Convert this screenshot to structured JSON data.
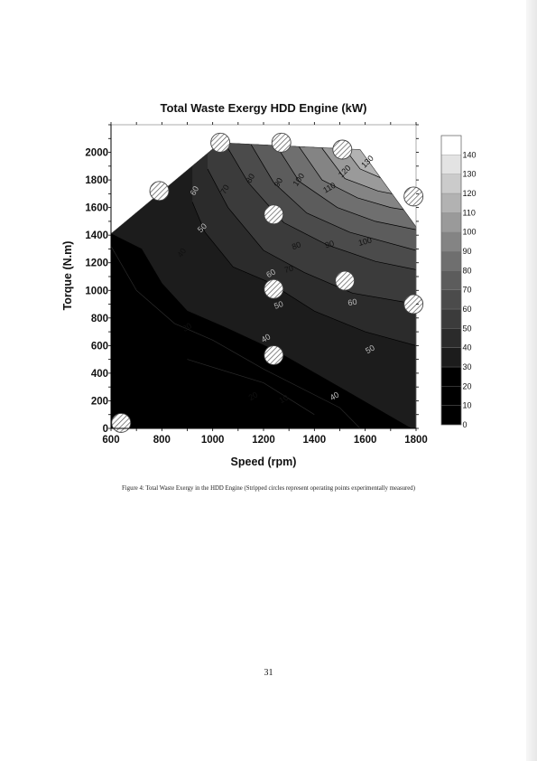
{
  "chart_data": {
    "type": "contour",
    "title": "Total Waste Exergy HDD Engine (kW)",
    "xlabel": "Speed (rpm)",
    "ylabel": "Torque (N.m)",
    "xlim": [
      600,
      1800
    ],
    "ylim": [
      0,
      2200
    ],
    "x_ticks": [
      600,
      800,
      1000,
      1200,
      1400,
      1600,
      1800
    ],
    "y_ticks": [
      0,
      200,
      400,
      600,
      800,
      1000,
      1200,
      1400,
      1600,
      1800,
      2000
    ],
    "colorbar": {
      "ticks": [
        0,
        10,
        20,
        30,
        40,
        50,
        60,
        70,
        80,
        90,
        100,
        110,
        120,
        130,
        140
      ],
      "colors": [
        "#000000",
        "#000000",
        "#000000",
        "#1c1c1c",
        "#2b2b2b",
        "#3b3b3b",
        "#4b4b4b",
        "#5c5c5c",
        "#6f6f6f",
        "#848484",
        "#9a9a9a",
        "#b2b2b2",
        "#cbcbcb",
        "#e3e3e3",
        "#ffffff"
      ]
    },
    "operating_region": [
      [
        600,
        0
      ],
      [
        1800,
        0
      ],
      [
        1800,
        1460
      ],
      [
        1580,
        2020
      ],
      [
        1030,
        2070
      ],
      [
        600,
        1410
      ]
    ],
    "contour_lines": [
      {
        "level": 10,
        "points": [
          [
            900,
            500
          ],
          [
            1200,
            330
          ],
          [
            1400,
            100
          ]
        ],
        "color": "#2a2a2a"
      },
      {
        "level": 20,
        "points": [
          [
            600,
            1320
          ],
          [
            700,
            1000
          ],
          [
            850,
            760
          ],
          [
            1000,
            640
          ],
          [
            1200,
            430
          ],
          [
            1500,
            150
          ],
          [
            1580,
            0
          ]
        ],
        "color": "#2a2a2a"
      },
      {
        "level": 30,
        "points": [
          [
            600,
            1410
          ],
          [
            720,
            1300
          ],
          [
            800,
            1050
          ],
          [
            900,
            850
          ],
          [
            1050,
            730
          ],
          [
            1250,
            560
          ],
          [
            1450,
            350
          ],
          [
            1620,
            170
          ],
          [
            1780,
            0
          ]
        ],
        "color": "#000000"
      },
      {
        "level": 40,
        "points": [
          [
            920,
            1640
          ],
          [
            970,
            1420
          ],
          [
            1080,
            1170
          ],
          [
            1220,
            1060
          ],
          [
            1400,
            850
          ],
          [
            1600,
            700
          ],
          [
            1800,
            600
          ]
        ],
        "color": "#000000"
      },
      {
        "level": 50,
        "points": [
          [
            980,
            1880
          ],
          [
            1060,
            1600
          ],
          [
            1200,
            1290
          ],
          [
            1360,
            1130
          ],
          [
            1550,
            980
          ],
          [
            1800,
            900
          ]
        ],
        "color": "#000000"
      },
      {
        "level": 60,
        "points": [
          [
            1050,
            2060
          ],
          [
            1140,
            1780
          ],
          [
            1280,
            1490
          ],
          [
            1450,
            1330
          ],
          [
            1640,
            1210
          ],
          [
            1800,
            1150
          ]
        ],
        "color": "#000000"
      },
      {
        "level": 70,
        "points": [
          [
            1150,
            2060
          ],
          [
            1240,
            1780
          ],
          [
            1370,
            1560
          ],
          [
            1540,
            1420
          ],
          [
            1800,
            1290
          ]
        ],
        "color": "#000000"
      },
      {
        "level": 80,
        "points": [
          [
            1250,
            2050
          ],
          [
            1340,
            1790
          ],
          [
            1490,
            1600
          ],
          [
            1640,
            1500
          ],
          [
            1800,
            1440
          ]
        ],
        "color": "#000000"
      },
      {
        "level": 90,
        "points": [
          [
            1340,
            2040
          ],
          [
            1430,
            1800
          ],
          [
            1570,
            1670
          ],
          [
            1700,
            1600
          ],
          [
            1800,
            1570
          ]
        ],
        "color": "#000000"
      },
      {
        "level": 100,
        "points": [
          [
            1430,
            2030
          ],
          [
            1520,
            1810
          ],
          [
            1650,
            1720
          ],
          [
            1760,
            1680
          ],
          [
            1800,
            1670
          ]
        ],
        "color": "#000000"
      },
      {
        "level": 110,
        "points": [
          [
            1520,
            2025
          ],
          [
            1580,
            1880
          ],
          [
            1680,
            1800
          ],
          [
            1800,
            1770
          ]
        ],
        "color": "#000000"
      }
    ],
    "contour_labels": [
      {
        "text": "10",
        "x": 1280,
        "y": 210,
        "rot": -30,
        "light": false
      },
      {
        "text": "20",
        "x": 1160,
        "y": 230,
        "rot": -30,
        "light": false
      },
      {
        "text": "30",
        "x": 900,
        "y": 730,
        "rot": -30,
        "light": false
      },
      {
        "text": "40",
        "x": 880,
        "y": 1270,
        "rot": -55,
        "light": false
      },
      {
        "text": "40",
        "x": 1210,
        "y": 650,
        "rot": -30,
        "light": true
      },
      {
        "text": "40",
        "x": 1480,
        "y": 230,
        "rot": -30,
        "light": true
      },
      {
        "text": "50",
        "x": 960,
        "y": 1450,
        "rot": -45,
        "light": true
      },
      {
        "text": "50",
        "x": 1260,
        "y": 890,
        "rot": -20,
        "light": true
      },
      {
        "text": "50",
        "x": 1620,
        "y": 570,
        "rot": -30,
        "light": true
      },
      {
        "text": "60",
        "x": 930,
        "y": 1720,
        "rot": -60,
        "light": true
      },
      {
        "text": "60",
        "x": 1230,
        "y": 1120,
        "rot": -30,
        "light": true
      },
      {
        "text": "60",
        "x": 1550,
        "y": 910,
        "rot": -10,
        "light": true
      },
      {
        "text": "70",
        "x": 1050,
        "y": 1730,
        "rot": -60,
        "light": false
      },
      {
        "text": "70",
        "x": 1300,
        "y": 1150,
        "rot": -15,
        "light": false
      },
      {
        "text": "80",
        "x": 1150,
        "y": 1810,
        "rot": -60,
        "light": false
      },
      {
        "text": "80",
        "x": 1330,
        "y": 1320,
        "rot": -20,
        "light": false
      },
      {
        "text": "90",
        "x": 1260,
        "y": 1780,
        "rot": -60,
        "light": false
      },
      {
        "text": "90",
        "x": 1460,
        "y": 1330,
        "rot": -15,
        "light": false
      },
      {
        "text": "100",
        "x": 1340,
        "y": 1800,
        "rot": -55,
        "light": false
      },
      {
        "text": "100",
        "x": 1600,
        "y": 1350,
        "rot": -15,
        "light": false
      },
      {
        "text": "110",
        "x": 1460,
        "y": 1740,
        "rot": -30,
        "light": false
      },
      {
        "text": "120",
        "x": 1520,
        "y": 1860,
        "rot": -45,
        "light": false
      },
      {
        "text": "130",
        "x": 1610,
        "y": 1930,
        "rot": -45,
        "light": false
      }
    ],
    "operating_points": [
      {
        "speed": 640,
        "torque": 40
      },
      {
        "speed": 790,
        "torque": 1720
      },
      {
        "speed": 1030,
        "torque": 2070
      },
      {
        "speed": 1240,
        "torque": 1550
      },
      {
        "speed": 1270,
        "torque": 2070
      },
      {
        "speed": 1510,
        "torque": 2020
      },
      {
        "speed": 1790,
        "torque": 1680
      },
      {
        "speed": 1240,
        "torque": 1010
      },
      {
        "speed": 1520,
        "torque": 1070
      },
      {
        "speed": 1790,
        "torque": 900
      },
      {
        "speed": 1240,
        "torque": 530
      }
    ]
  },
  "caption": "Figure 4: Total Waste Exergy in the HDD Engine (Stripped circles represent operating points experimentally measured)",
  "page_number": "31"
}
